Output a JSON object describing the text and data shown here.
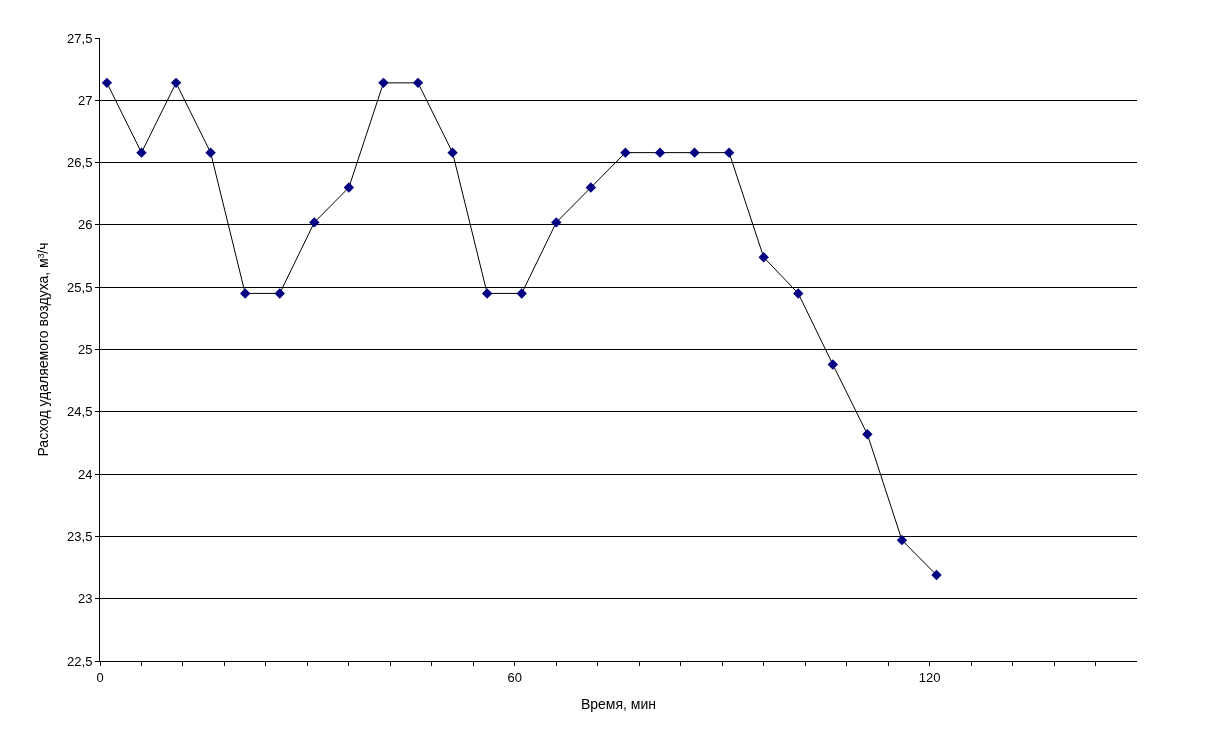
{
  "chart_data": {
    "type": "line",
    "xlabel": "Время, мин",
    "ylabel": "Расход удаляемого воздуха, м³/ч",
    "x": [
      1,
      6,
      11,
      16,
      21,
      26,
      31,
      36,
      41,
      46,
      51,
      56,
      61,
      66,
      71,
      76,
      81,
      86,
      91,
      96,
      101,
      106,
      111,
      116,
      121
    ],
    "series": [
      {
        "color": "#000080",
        "values": [
          27.14,
          26.58,
          27.14,
          26.58,
          25.45,
          25.45,
          26.02,
          26.3,
          27.14,
          27.14,
          26.58,
          25.45,
          25.45,
          26.02,
          26.3,
          26.58,
          26.58,
          26.58,
          26.58,
          25.74,
          25.45,
          24.88,
          24.32,
          23.47,
          23.19
        ]
      }
    ],
    "xlim": [
      0,
      150
    ],
    "xticks": [
      0,
      {
        "value": 6,
        "label": null
      },
      {
        "value": 12,
        "label": null
      },
      {
        "value": 18,
        "label": null
      },
      {
        "value": 24,
        "label": null
      },
      {
        "value": 30,
        "label": null
      },
      {
        "value": 36,
        "label": null
      },
      {
        "value": 42,
        "label": null
      },
      {
        "value": 48,
        "label": null
      },
      {
        "value": 54,
        "label": null
      },
      60,
      {
        "value": 66,
        "label": null
      },
      {
        "value": 72,
        "label": null
      },
      {
        "value": 78,
        "label": null
      },
      {
        "value": 84,
        "label": null
      },
      {
        "value": 90,
        "label": null
      },
      {
        "value": 96,
        "label": null
      },
      {
        "value": 102,
        "label": null
      },
      {
        "value": 108,
        "label": null
      },
      {
        "value": 114,
        "label": null
      },
      120,
      {
        "value": 126,
        "label": null
      },
      {
        "value": 132,
        "label": null
      },
      {
        "value": 138,
        "label": null
      },
      {
        "value": 144,
        "label": null
      }
    ],
    "ylim": [
      22.5,
      27.5
    ],
    "yticks": [
      {
        "value": 22.5,
        "label": "22,5"
      },
      23,
      {
        "value": 23.5,
        "label": "23,5"
      },
      24,
      {
        "value": 24.5,
        "label": "24,5"
      },
      25,
      {
        "value": 25.5,
        "label": "25,5"
      },
      26,
      {
        "value": 26.5,
        "label": "26,5"
      },
      27,
      {
        "value": 27.5,
        "label": "27,5"
      }
    ],
    "grid": "y",
    "marker": "diamond",
    "line_style": "solid"
  }
}
